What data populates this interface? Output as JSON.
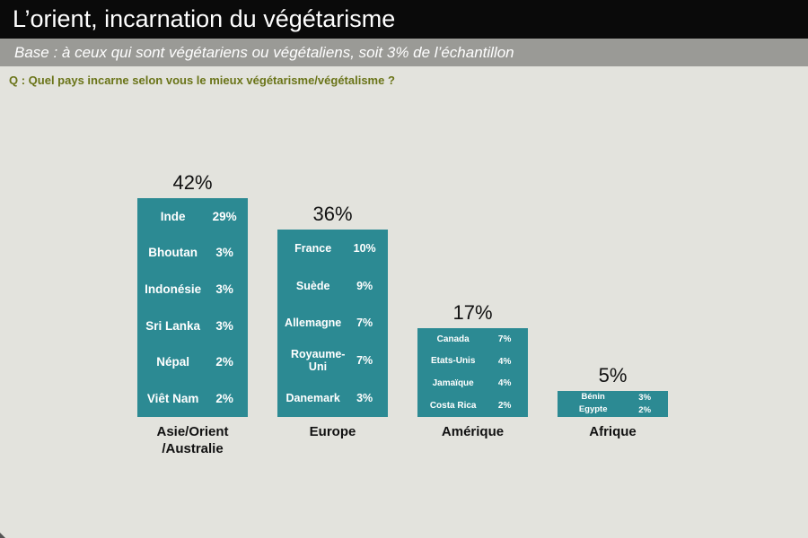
{
  "title": "L’orient, incarnation du végétarisme",
  "subtitle": "Base : à ceux qui sont végétariens ou végétaliens, soit 3% de l’échantillon",
  "question": "Q : Quel pays incarne selon vous le mieux végétarisme/végétalisme ?",
  "colors": {
    "bar": "#2c8a93",
    "title_bg": "#0a0a0a",
    "subtitle_bg": "#9a9a96",
    "question": "#6a7418"
  },
  "chart_data": {
    "type": "bar",
    "title": "",
    "xlabel": "",
    "ylabel": "",
    "ylim": [
      0,
      42
    ],
    "grid": false,
    "categories": [
      "Asie/Orient /Australie",
      "Europe",
      "Amérique",
      "Afrique"
    ],
    "values": [
      42,
      36,
      17,
      5
    ],
    "value_labels": [
      "42%",
      "36%",
      "17%",
      "5%"
    ],
    "breakdown": [
      [
        {
          "country": "Inde",
          "value": 29,
          "label": "29%"
        },
        {
          "country": "Bhoutan",
          "value": 3,
          "label": "3%"
        },
        {
          "country": "Indonésie",
          "value": 3,
          "label": "3%"
        },
        {
          "country": "Sri Lanka",
          "value": 3,
          "label": "3%"
        },
        {
          "country": "Népal",
          "value": 2,
          "label": "2%"
        },
        {
          "country": "Viêt Nam",
          "value": 2,
          "label": "2%"
        }
      ],
      [
        {
          "country": "France",
          "value": 10,
          "label": "10%"
        },
        {
          "country": "Suède",
          "value": 9,
          "label": "9%"
        },
        {
          "country": "Allemagne",
          "value": 7,
          "label": "7%"
        },
        {
          "country": "Royaume-Uni",
          "value": 7,
          "label": "7%"
        },
        {
          "country": "Danemark",
          "value": 3,
          "label": "3%"
        }
      ],
      [
        {
          "country": "Canada",
          "value": 7,
          "label": "7%"
        },
        {
          "country": "Etats-Unis",
          "value": 4,
          "label": "4%"
        },
        {
          "country": "Jamaïque",
          "value": 4,
          "label": "4%"
        },
        {
          "country": "Costa Rica",
          "value": 2,
          "label": "2%"
        }
      ],
      [
        {
          "country": "Bénin",
          "value": 3,
          "label": "3%"
        },
        {
          "country": "Egypte",
          "value": 2,
          "label": "2%"
        }
      ]
    ]
  }
}
